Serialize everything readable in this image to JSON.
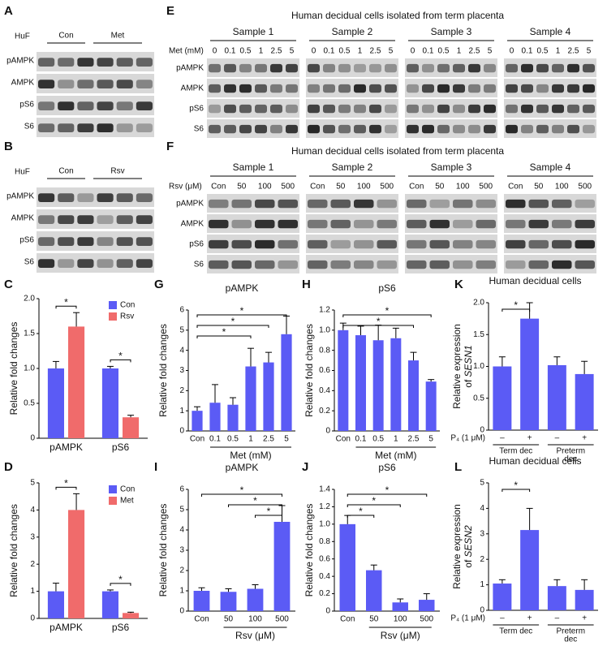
{
  "blots": [
    {
      "letter": "A",
      "header": "HuF",
      "groups": [
        "Con",
        "Met"
      ],
      "rows": [
        "pAMPK",
        "AMPK",
        "pS6",
        "S6"
      ]
    },
    {
      "letter": "B",
      "header": "HuF",
      "groups": [
        "Con",
        "Rsv"
      ],
      "rows": [
        "pAMPK",
        "AMPK",
        "pS6",
        "S6"
      ]
    },
    {
      "letter": "E",
      "title": "Human decidual cells isolated from term placenta",
      "dose_label": "Met (mM)",
      "samples": [
        "Sample 1",
        "Sample 2",
        "Sample 3",
        "Sample 4"
      ],
      "lanes": [
        "0",
        "0.1",
        "0.5",
        "1",
        "2.5",
        "5"
      ],
      "rows": [
        "pAMPK",
        "AMPK",
        "pS6",
        "S6"
      ]
    },
    {
      "letter": "F",
      "title": "Human decidual cells isolated from term placenta",
      "dose_label": "Rsv (μM)",
      "samples": [
        "Sample 1",
        "Sample 2",
        "Sample 3",
        "Sample 4"
      ],
      "lanes": [
        "Con",
        "50",
        "100",
        "500"
      ],
      "rows": [
        "pAMPK",
        "AMPK",
        "pS6",
        "S6"
      ]
    }
  ],
  "chart_data": [
    {
      "type": "bar",
      "panel": "C",
      "ylabel": [
        "Relative fold changes"
      ],
      "categories": [
        "pAMPK",
        "pS6"
      ],
      "series": [
        {
          "name": "Con",
          "color": "#5b5bf5",
          "values": [
            1.0,
            1.0
          ],
          "errors": [
            0.1,
            0.03
          ]
        },
        {
          "name": "Rsv",
          "color": "#f06b6b",
          "values": [
            1.6,
            0.3
          ],
          "errors": [
            0.2,
            0.03
          ]
        }
      ],
      "ylim": [
        0,
        2
      ],
      "yticks": [
        0,
        0.5,
        {
          "value": 1,
          "label": "1.0"
        },
        {
          "value": 1.5,
          "label": "1.5"
        },
        {
          "value": 2,
          "label": "2.0"
        }
      ],
      "legend": "upper right",
      "significance": [
        {
          "category": "pAMPK",
          "label": "*"
        },
        {
          "category": "pS6",
          "label": "*"
        }
      ]
    },
    {
      "type": "bar",
      "panel": "G",
      "title": "pAMPK",
      "ylabel": [
        "Relative fold changes"
      ],
      "xlabel": "Met (mM)",
      "categories": [
        "Con",
        "0.1",
        "0.5",
        "1",
        "2.5",
        "5"
      ],
      "color": "#5b5bf5",
      "values": [
        1.0,
        1.4,
        1.3,
        3.2,
        3.4,
        4.8
      ],
      "errors": [
        0.2,
        0.9,
        0.35,
        0.9,
        0.5,
        0.9
      ],
      "ylim": [
        0,
        6
      ],
      "yticks": [
        0,
        1,
        2,
        3,
        4,
        5,
        6
      ],
      "significance": [
        {
          "from": "Con",
          "to": "1",
          "label": "*"
        },
        {
          "from": "Con",
          "to": "2.5",
          "label": "*"
        },
        {
          "from": "Con",
          "to": "5",
          "label": "*"
        }
      ]
    },
    {
      "type": "bar",
      "panel": "H",
      "title": "pS6",
      "ylabel": [
        "Relative fold changes"
      ],
      "xlabel": "Met (mM)",
      "categories": [
        "Con",
        "0.1",
        "0.5",
        "1",
        "2.5",
        "5"
      ],
      "color": "#5b5bf5",
      "values": [
        1.0,
        0.95,
        0.9,
        0.92,
        0.7,
        0.49
      ],
      "errors": [
        0.07,
        0.09,
        0.15,
        0.1,
        0.08,
        0.02
      ],
      "ylim": [
        0,
        1.2
      ],
      "yticks": [
        0,
        0.2,
        0.4,
        0.6,
        0.8,
        {
          "value": 1,
          "label": "1.0"
        },
        1.2
      ],
      "significance": [
        {
          "from": "Con",
          "to": "2.5",
          "label": "*"
        },
        {
          "from": "Con",
          "to": "5",
          "label": "*"
        }
      ]
    },
    {
      "type": "bar",
      "panel": "K",
      "title": "Human decidual cells",
      "ylabel": [
        "Relative expression",
        "of",
        "SESN1"
      ],
      "treatment": "P₄ (1 μM)",
      "categories": [
        "–",
        "+",
        "–",
        "+"
      ],
      "groups": [
        [
          "Term dec"
        ],
        [
          "Preterm",
          "dec"
        ]
      ],
      "color": "#5b5bf5",
      "values": [
        1.0,
        1.75,
        1.02,
        0.88
      ],
      "errors": [
        0.15,
        0.25,
        0.13,
        0.2
      ],
      "ylim": [
        0,
        2
      ],
      "yticks": [
        0,
        0.5,
        {
          "value": 1,
          "label": "1.0"
        },
        {
          "value": 1.5,
          "label": "1.5"
        },
        {
          "value": 2,
          "label": "2.0"
        }
      ],
      "significance": [
        {
          "from": 0,
          "to": 1,
          "label": "*"
        }
      ]
    },
    {
      "type": "bar",
      "panel": "D",
      "ylabel": [
        "Relative fold changes"
      ],
      "categories": [
        "pAMPK",
        "pS6"
      ],
      "series": [
        {
          "name": "Con",
          "color": "#5b5bf5",
          "values": [
            1.0,
            1.0
          ],
          "errors": [
            0.3,
            0.05
          ]
        },
        {
          "name": "Met",
          "color": "#f06b6b",
          "values": [
            4.0,
            0.2
          ],
          "errors": [
            0.6,
            0.03
          ]
        }
      ],
      "ylim": [
        0,
        5
      ],
      "yticks": [
        0,
        1,
        2,
        3,
        4,
        5
      ],
      "legend": "upper right",
      "significance": [
        {
          "category": "pAMPK",
          "label": "*"
        },
        {
          "category": "pS6",
          "label": "*"
        }
      ]
    },
    {
      "type": "bar",
      "panel": "I",
      "title": "pAMPK",
      "ylabel": [
        "Relative fold changes"
      ],
      "xlabel": "Rsv (μM)",
      "categories": [
        "Con",
        "50",
        "100",
        "500"
      ],
      "color": "#5b5bf5",
      "values": [
        1.0,
        0.95,
        1.1,
        4.4
      ],
      "errors": [
        0.15,
        0.15,
        0.2,
        0.8
      ],
      "ylim": [
        0,
        6
      ],
      "yticks": [
        0,
        1,
        2,
        3,
        4,
        5,
        6
      ],
      "significance": [
        {
          "from": "100",
          "to": "500",
          "label": "*"
        },
        {
          "from": "50",
          "to": "500",
          "label": "*"
        },
        {
          "from": "Con",
          "to": "500",
          "label": "*"
        }
      ]
    },
    {
      "type": "bar",
      "panel": "J",
      "title": "pS6",
      "ylabel": [
        "Relative fold changes"
      ],
      "xlabel": "Rsv (μM)",
      "categories": [
        "Con",
        "50",
        "100",
        "500"
      ],
      "color": "#5b5bf5",
      "values": [
        1.0,
        0.47,
        0.1,
        0.13
      ],
      "errors": [
        0.1,
        0.06,
        0.04,
        0.07
      ],
      "ylim": [
        0,
        1.4
      ],
      "yticks": [
        0,
        0.2,
        0.4,
        0.6,
        0.8,
        {
          "value": 1,
          "label": "1.0"
        },
        1.2,
        1.4
      ],
      "significance": [
        {
          "from": "Con",
          "to": "50",
          "label": "*"
        },
        {
          "from": "Con",
          "to": "100",
          "label": "*"
        },
        {
          "from": "Con",
          "to": "500",
          "label": "*"
        }
      ]
    },
    {
      "type": "bar",
      "panel": "L",
      "title": "Human decidual cells",
      "ylabel": [
        "Relative expression",
        "of",
        "SESN2"
      ],
      "treatment": "P₄ (1 μM)",
      "categories": [
        "–",
        "+",
        "–",
        "+"
      ],
      "groups": [
        [
          "Term dec"
        ],
        [
          "Preterm",
          "dec"
        ]
      ],
      "color": "#5b5bf5",
      "values": [
        1.05,
        3.15,
        0.95,
        0.8
      ],
      "errors": [
        0.15,
        0.85,
        0.25,
        0.4
      ],
      "ylim": [
        0,
        5
      ],
      "yticks": [
        0,
        1,
        2,
        3,
        4,
        5
      ],
      "significance": [
        {
          "from": 0,
          "to": 1,
          "label": "*"
        }
      ]
    }
  ]
}
